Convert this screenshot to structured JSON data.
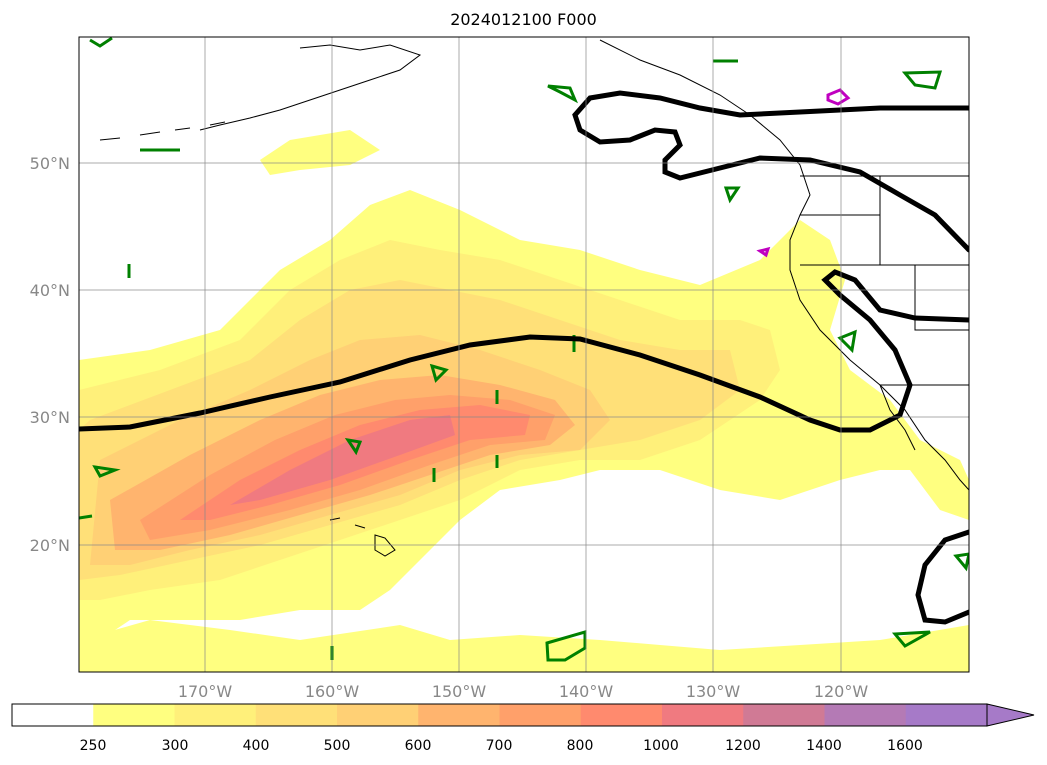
{
  "title": "2024012100 F000",
  "lat_labels": [
    "50°N",
    "40°N",
    "30°N",
    "20°N"
  ],
  "lon_labels": [
    "170°W",
    "160°W",
    "150°W",
    "140°W",
    "130°W",
    "120°W"
  ],
  "colorbar": {
    "ticks": [
      "250",
      "300",
      "400",
      "500",
      "600",
      "700",
      "800",
      "1000",
      "1200",
      "1400",
      "1600"
    ],
    "colors": [
      "#ffffff",
      "#ffff80",
      "#fff07a",
      "#ffe078",
      "#ffd075",
      "#ffb46e",
      "#ffa06a",
      "#ff8a6e",
      "#f07a80",
      "#d07a95",
      "#b47ab5",
      "#a67ac8"
    ],
    "extend": "max"
  },
  "map": {
    "fill_levels": [
      "250",
      "300",
      "400",
      "500",
      "600",
      "700",
      "800",
      "1000",
      "1200"
    ],
    "black_contour": "thick",
    "green_contour": "thin",
    "magenta_contour": "thin"
  }
}
